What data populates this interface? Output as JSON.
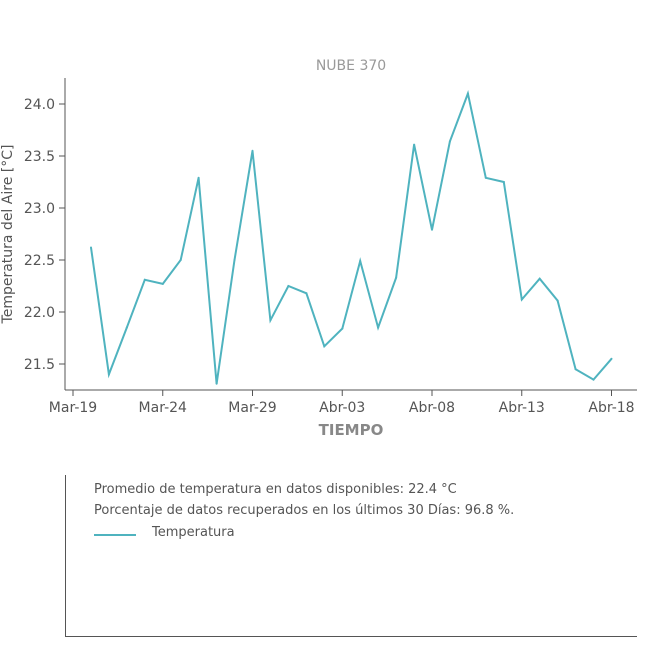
{
  "chart_data": {
    "type": "line",
    "title": "NUBE 370",
    "xlabel": "TIEMPO",
    "ylabel": "Temperatura del Aire [°C]",
    "x_ticks": [
      "Mar-19",
      "Mar-24",
      "Mar-29",
      "Abr-03",
      "Abr-08",
      "Abr-13",
      "Abr-18"
    ],
    "y_ticks": [
      "21.5",
      "22.0",
      "22.5",
      "23.0",
      "23.5",
      "24.0"
    ],
    "ylim": [
      21.25,
      24.25
    ],
    "grid": false,
    "series": [
      {
        "name": "Temperatura",
        "color": "#4fb3bf",
        "x": [
          "Mar-20",
          "Mar-21",
          "Mar-22",
          "Mar-23",
          "Mar-24",
          "Mar-25",
          "Mar-26",
          "Mar-27",
          "Mar-28",
          "Mar-29",
          "Mar-30",
          "Mar-31",
          "Abr-01",
          "Abr-02",
          "Abr-03",
          "Abr-04",
          "Abr-05",
          "Abr-06",
          "Abr-07",
          "Abr-08",
          "Abr-09",
          "Abr-10",
          "Abr-11",
          "Abr-12",
          "Abr-13",
          "Abr-14",
          "Abr-15",
          "Abr-16",
          "Abr-17",
          "Abr-18"
        ],
        "values": [
          22.62,
          21.4,
          21.85,
          22.31,
          22.27,
          22.5,
          23.29,
          21.31,
          22.5,
          23.55,
          21.92,
          22.25,
          22.18,
          21.67,
          21.84,
          22.49,
          21.85,
          22.33,
          23.61,
          22.79,
          23.64,
          24.1,
          23.29,
          23.25,
          22.12,
          22.32,
          22.11,
          21.45,
          21.35,
          21.55
        ]
      }
    ]
  },
  "info": {
    "line1": "Promedio de temperatura en datos disponibles: 22.4 °C",
    "line2": "Porcentaje de datos recuperados en los últimos 30 Días: 96.8 %.",
    "legend_label": "Temperatura"
  }
}
